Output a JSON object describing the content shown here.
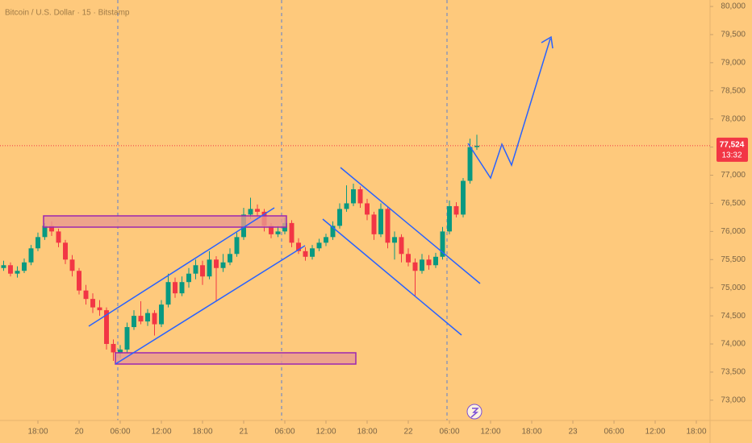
{
  "chart_data": {
    "type": "candlestick",
    "title": "Bitcoin / U.S. Dollar · 15 · Bitstamp",
    "x": [
      13,
      14,
      15,
      16,
      17,
      18,
      19,
      20,
      21,
      22,
      23,
      24,
      25,
      26,
      27,
      28,
      29,
      30,
      31,
      32,
      33,
      34,
      35,
      36,
      37,
      38,
      39,
      40,
      41,
      42,
      43,
      44,
      45,
      46,
      47,
      48,
      49,
      50,
      51,
      52,
      53,
      54,
      55,
      56,
      57,
      58,
      59,
      60,
      61,
      62,
      63,
      64,
      65,
      66,
      67,
      68,
      69,
      70,
      71,
      72,
      73,
      74,
      75,
      76,
      77,
      78,
      79,
      80,
      81,
      82
    ],
    "candles": [
      [
        75350,
        75480,
        75300,
        75400
      ],
      [
        75400,
        75450,
        75200,
        75250
      ],
      [
        75250,
        75380,
        75180,
        75300
      ],
      [
        75300,
        75520,
        75260,
        75450
      ],
      [
        75450,
        75760,
        75400,
        75700
      ],
      [
        75700,
        75980,
        75650,
        75900
      ],
      [
        75900,
        76150,
        75850,
        76100
      ],
      [
        76100,
        76180,
        75920,
        76000
      ],
      [
        76000,
        76050,
        75720,
        75800
      ],
      [
        75800,
        75850,
        75420,
        75500
      ],
      [
        75500,
        75580,
        75200,
        75300
      ],
      [
        75300,
        75350,
        74880,
        74950
      ],
      [
        74950,
        75050,
        74700,
        74800
      ],
      [
        74800,
        74900,
        74550,
        74650
      ],
      [
        74650,
        74780,
        74500,
        74600
      ],
      [
        74600,
        74650,
        73900,
        74000
      ],
      [
        74000,
        74080,
        73700,
        73850
      ],
      [
        73850,
        73980,
        73750,
        73900
      ],
      [
        73900,
        74380,
        73850,
        74300
      ],
      [
        74300,
        74600,
        74250,
        74500
      ],
      [
        74500,
        74760,
        74350,
        74400
      ],
      [
        74400,
        74620,
        74320,
        74550
      ],
      [
        74550,
        74600,
        74150,
        74350
      ],
      [
        74350,
        74780,
        74300,
        74700
      ],
      [
        74700,
        75250,
        74650,
        75100
      ],
      [
        75100,
        75180,
        74820,
        74900
      ],
      [
        74900,
        75200,
        74850,
        75100
      ],
      [
        75100,
        75350,
        75000,
        75250
      ],
      [
        75250,
        75500,
        75150,
        75400
      ],
      [
        75400,
        75480,
        75050,
        75200
      ],
      [
        75200,
        75650,
        75150,
        75500
      ],
      [
        75500,
        75560,
        74750,
        75350
      ],
      [
        75350,
        75600,
        75280,
        75450
      ],
      [
        75450,
        75700,
        75400,
        75600
      ],
      [
        75600,
        75980,
        75550,
        75900
      ],
      [
        75900,
        76420,
        75850,
        76300
      ],
      [
        76300,
        76600,
        76220,
        76400
      ],
      [
        76400,
        76480,
        76200,
        76350
      ],
      [
        76350,
        76400,
        76000,
        76100
      ],
      [
        76100,
        76150,
        75880,
        75950
      ],
      [
        75950,
        76100,
        75900,
        76000
      ],
      [
        76000,
        76250,
        75950,
        76150
      ],
      [
        76150,
        76200,
        75720,
        75800
      ],
      [
        75800,
        75880,
        75600,
        75650
      ],
      [
        75650,
        75720,
        75480,
        75550
      ],
      [
        75550,
        75760,
        75500,
        75700
      ],
      [
        75700,
        75870,
        75650,
        75800
      ],
      [
        75800,
        75960,
        75740,
        75900
      ],
      [
        75900,
        76180,
        75850,
        76100
      ],
      [
        76100,
        76500,
        76050,
        76400
      ],
      [
        76400,
        76820,
        76350,
        76500
      ],
      [
        76500,
        76850,
        76450,
        76750
      ],
      [
        76750,
        76800,
        76420,
        76500
      ],
      [
        76500,
        76580,
        76200,
        76300
      ],
      [
        76300,
        76350,
        75850,
        75950
      ],
      [
        75950,
        76500,
        75900,
        76400
      ],
      [
        76400,
        76450,
        75700,
        75800
      ],
      [
        75800,
        76000,
        75500,
        75900
      ],
      [
        75900,
        75950,
        75450,
        75600
      ],
      [
        75600,
        75700,
        75380,
        75450
      ],
      [
        75450,
        75520,
        74850,
        75300
      ],
      [
        75300,
        75600,
        75250,
        75500
      ],
      [
        75500,
        75580,
        75320,
        75400
      ],
      [
        75400,
        75620,
        75350,
        75550
      ],
      [
        75550,
        76080,
        75500,
        76000
      ],
      [
        76000,
        76550,
        75950,
        76450
      ],
      [
        76450,
        76520,
        76250,
        76300
      ],
      [
        76300,
        76950,
        76250,
        76900
      ],
      [
        76900,
        77650,
        76850,
        77500
      ],
      [
        77500,
        77720,
        77450,
        77524
      ]
    ],
    "up_color": "#089981",
    "down_color": "#f23645",
    "xlim": [
      12.47,
      116
    ],
    "xticks": [
      {
        "value": 18,
        "label": "18:00"
      },
      {
        "value": 24,
        "label": "20"
      },
      {
        "value": 30,
        "label": "06:00"
      },
      {
        "value": 36,
        "label": "12:00"
      },
      {
        "value": 42,
        "label": "18:00"
      },
      {
        "value": 48,
        "label": "21"
      },
      {
        "value": 54,
        "label": "06:00"
      },
      {
        "value": 60,
        "label": "12:00"
      },
      {
        "value": 66,
        "label": "18:00"
      },
      {
        "value": 72,
        "label": "22"
      },
      {
        "value": 78,
        "label": "06:00"
      },
      {
        "value": 84,
        "label": "12:00"
      },
      {
        "value": 90,
        "label": "18:00"
      },
      {
        "value": 96,
        "label": "23"
      },
      {
        "value": 102,
        "label": "06:00"
      },
      {
        "value": 108,
        "label": "12:00"
      },
      {
        "value": 114,
        "label": "18:00"
      }
    ],
    "ylim": [
      72640,
      80115
    ],
    "yticks": [
      {
        "value": 73000,
        "label": "73,000"
      },
      {
        "value": 73500,
        "label": "73,500"
      },
      {
        "value": 74000,
        "label": "74,000"
      },
      {
        "value": 74500,
        "label": "74,500"
      },
      {
        "value": 75000,
        "label": "75,000"
      },
      {
        "value": 75500,
        "label": "75,500"
      },
      {
        "value": 76000,
        "label": "76,000"
      },
      {
        "value": 76500,
        "label": "76,500"
      },
      {
        "value": 77000,
        "label": "77,000"
      },
      {
        "value": 77500,
        "label": "77,500"
      },
      {
        "value": 78000,
        "label": "78,000"
      },
      {
        "value": 78500,
        "label": "78,500"
      },
      {
        "value": 79000,
        "label": "79,000"
      },
      {
        "value": 79500,
        "label": "79,500"
      },
      {
        "value": 80000,
        "label": "80,000"
      }
    ],
    "last_price": {
      "value": 77524,
      "label": "77,524"
    },
    "countdown": "13:32"
  }
}
